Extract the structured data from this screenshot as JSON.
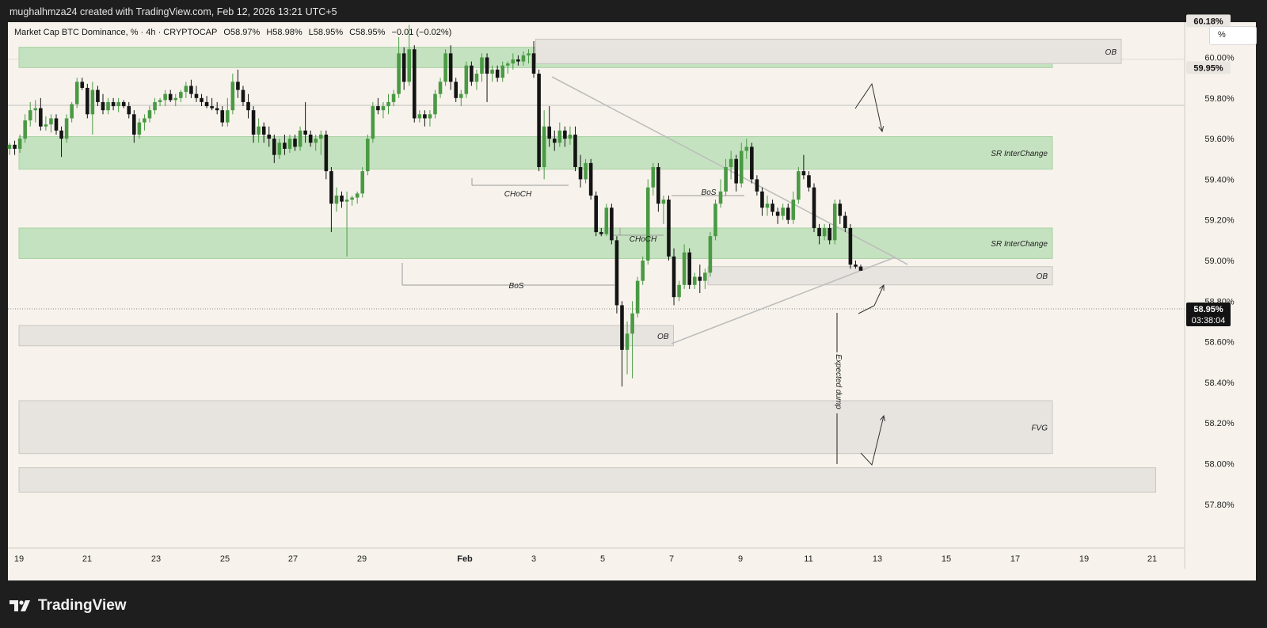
{
  "header": {
    "attribution": "mughalhmza24 created with TradingView.com, Feb 12, 2026 13:21 UTC+5"
  },
  "legend": {
    "symbol": "Market Cap BTC Dominance, % · 4h · CRYPTOCAP",
    "open": "O58.97%",
    "high": "H58.98%",
    "low": "L58.95%",
    "close": "C58.95%",
    "change": "−0.01 (−0.02%)"
  },
  "scale_button": "%",
  "brand": {
    "name": "TradingView"
  },
  "colors": {
    "up": "#4a9a44",
    "down": "#141414",
    "zone_green": "#c5e2c0",
    "zone_gray": "#e7e4e0"
  },
  "chart_data": {
    "type": "candlestick",
    "y_unit": "%",
    "ylim": [
      57.75,
      60.3
    ],
    "y_ticks": [
      "60.00%",
      "59.80%",
      "59.60%",
      "59.40%",
      "59.20%",
      "59.00%",
      "58.80%",
      "58.60%",
      "58.40%",
      "58.20%",
      "58.00%",
      "57.80%"
    ],
    "x_ticks": [
      "19",
      "21",
      "23",
      "25",
      "27",
      "29",
      "Feb",
      "3",
      "5",
      "7",
      "9",
      "11",
      "13",
      "15",
      "17",
      "19",
      "21"
    ],
    "price_labels": [
      {
        "value": 60.18,
        "text": "60.18%",
        "style": "gray"
      },
      {
        "value": 59.95,
        "text": "59.95%",
        "style": "gray"
      },
      {
        "value": 58.95,
        "text": "58.95%",
        "style": "dark",
        "countdown": "03:38:04"
      }
    ],
    "zones": [
      {
        "kind": "green",
        "label": "SR InterChange",
        "from": "Jan 19",
        "to": "Feb 18",
        "low": 59.95,
        "high": 60.05
      },
      {
        "kind": "gray",
        "label": "OB",
        "from": "Feb 3",
        "to": "Feb 20",
        "low": 59.97,
        "high": 60.09
      },
      {
        "kind": "green",
        "label": "SR InterChange",
        "from": "Jan 19",
        "to": "Feb 18",
        "low": 59.45,
        "high": 59.61
      },
      {
        "kind": "green",
        "label": "SR InterChange",
        "from": "Jan 19",
        "to": "Feb 18",
        "low": 59.01,
        "high": 59.16
      },
      {
        "kind": "gray",
        "label": "OB",
        "from": "Feb 8",
        "to": "Feb 18",
        "low": 58.88,
        "high": 58.97
      },
      {
        "kind": "gray",
        "label": "OB",
        "from": "Jan 19",
        "to": "Feb 7",
        "low": 58.58,
        "high": 58.68
      },
      {
        "kind": "gray",
        "label": "FVG",
        "from": "Jan 19",
        "to": "Feb 18",
        "low": 58.05,
        "high": 58.31
      },
      {
        "kind": "gray",
        "label": "",
        "from": "Jan 19",
        "to": "Feb 21",
        "low": 57.86,
        "high": 57.98
      }
    ],
    "annotations": [
      "CHoCH",
      "CHoCH",
      "BoS",
      "BoS",
      "Expected dump"
    ],
    "candles": [
      {
        "o": 59.55,
        "h": 59.58,
        "l": 59.52,
        "c": 59.57
      },
      {
        "o": 59.57,
        "h": 59.59,
        "l": 59.52,
        "c": 59.55
      },
      {
        "o": 59.55,
        "h": 59.62,
        "l": 59.53,
        "c": 59.6
      },
      {
        "o": 59.6,
        "h": 59.72,
        "l": 59.58,
        "c": 59.69
      },
      {
        "o": 59.69,
        "h": 59.78,
        "l": 59.66,
        "c": 59.74
      },
      {
        "o": 59.74,
        "h": 59.79,
        "l": 59.68,
        "c": 59.75
      },
      {
        "o": 59.75,
        "h": 59.8,
        "l": 59.64,
        "c": 59.66
      },
      {
        "o": 59.66,
        "h": 59.71,
        "l": 59.64,
        "c": 59.67
      },
      {
        "o": 59.67,
        "h": 59.72,
        "l": 59.63,
        "c": 59.7
      },
      {
        "o": 59.7,
        "h": 59.72,
        "l": 59.62,
        "c": 59.64
      },
      {
        "o": 59.64,
        "h": 59.66,
        "l": 59.51,
        "c": 59.6
      },
      {
        "o": 59.6,
        "h": 59.72,
        "l": 59.58,
        "c": 59.7
      },
      {
        "o": 59.7,
        "h": 59.78,
        "l": 59.68,
        "c": 59.77
      },
      {
        "o": 59.77,
        "h": 59.9,
        "l": 59.75,
        "c": 59.88
      },
      {
        "o": 59.88,
        "h": 59.9,
        "l": 59.84,
        "c": 59.85
      },
      {
        "o": 59.85,
        "h": 59.87,
        "l": 59.7,
        "c": 59.72
      },
      {
        "o": 59.72,
        "h": 59.88,
        "l": 59.62,
        "c": 59.84
      },
      {
        "o": 59.84,
        "h": 59.86,
        "l": 59.76,
        "c": 59.78
      },
      {
        "o": 59.78,
        "h": 59.82,
        "l": 59.72,
        "c": 59.74
      },
      {
        "o": 59.74,
        "h": 59.8,
        "l": 59.72,
        "c": 59.78
      },
      {
        "o": 59.78,
        "h": 59.8,
        "l": 59.74,
        "c": 59.76
      },
      {
        "o": 59.76,
        "h": 59.8,
        "l": 59.73,
        "c": 59.78
      },
      {
        "o": 59.78,
        "h": 59.79,
        "l": 59.75,
        "c": 59.76
      },
      {
        "o": 59.76,
        "h": 59.78,
        "l": 59.7,
        "c": 59.72
      },
      {
        "o": 59.72,
        "h": 59.74,
        "l": 59.58,
        "c": 59.62
      },
      {
        "o": 59.62,
        "h": 59.7,
        "l": 59.6,
        "c": 59.68
      },
      {
        "o": 59.68,
        "h": 59.72,
        "l": 59.64,
        "c": 59.7
      },
      {
        "o": 59.7,
        "h": 59.76,
        "l": 59.68,
        "c": 59.74
      },
      {
        "o": 59.74,
        "h": 59.8,
        "l": 59.72,
        "c": 59.78
      },
      {
        "o": 59.78,
        "h": 59.8,
        "l": 59.76,
        "c": 59.79
      },
      {
        "o": 59.79,
        "h": 59.84,
        "l": 59.76,
        "c": 59.82
      },
      {
        "o": 59.82,
        "h": 59.84,
        "l": 59.78,
        "c": 59.79
      },
      {
        "o": 59.79,
        "h": 59.82,
        "l": 59.76,
        "c": 59.8
      },
      {
        "o": 59.8,
        "h": 59.84,
        "l": 59.78,
        "c": 59.83
      },
      {
        "o": 59.83,
        "h": 59.88,
        "l": 59.8,
        "c": 59.86
      },
      {
        "o": 59.86,
        "h": 59.89,
        "l": 59.8,
        "c": 59.82
      },
      {
        "o": 59.82,
        "h": 59.86,
        "l": 59.78,
        "c": 59.8
      },
      {
        "o": 59.8,
        "h": 59.82,
        "l": 59.76,
        "c": 59.78
      },
      {
        "o": 59.78,
        "h": 59.81,
        "l": 59.75,
        "c": 59.76
      },
      {
        "o": 59.76,
        "h": 59.8,
        "l": 59.74,
        "c": 59.75
      },
      {
        "o": 59.75,
        "h": 59.78,
        "l": 59.72,
        "c": 59.74
      },
      {
        "o": 59.74,
        "h": 59.76,
        "l": 59.66,
        "c": 59.68
      },
      {
        "o": 59.68,
        "h": 59.8,
        "l": 59.66,
        "c": 59.74
      },
      {
        "o": 59.74,
        "h": 59.92,
        "l": 59.72,
        "c": 59.88
      },
      {
        "o": 59.88,
        "h": 59.94,
        "l": 59.8,
        "c": 59.84
      },
      {
        "o": 59.84,
        "h": 59.86,
        "l": 59.76,
        "c": 59.78
      },
      {
        "o": 59.78,
        "h": 59.82,
        "l": 59.7,
        "c": 59.74
      },
      {
        "o": 59.74,
        "h": 59.76,
        "l": 59.58,
        "c": 59.62
      },
      {
        "o": 59.62,
        "h": 59.7,
        "l": 59.58,
        "c": 59.66
      },
      {
        "o": 59.66,
        "h": 59.68,
        "l": 59.58,
        "c": 59.62
      },
      {
        "o": 59.62,
        "h": 59.66,
        "l": 59.56,
        "c": 59.6
      },
      {
        "o": 59.6,
        "h": 59.62,
        "l": 59.48,
        "c": 59.52
      },
      {
        "o": 59.52,
        "h": 59.6,
        "l": 59.5,
        "c": 59.58
      },
      {
        "o": 59.58,
        "h": 59.62,
        "l": 59.52,
        "c": 59.55
      },
      {
        "o": 59.55,
        "h": 59.62,
        "l": 59.53,
        "c": 59.6
      },
      {
        "o": 59.6,
        "h": 59.62,
        "l": 59.54,
        "c": 59.56
      },
      {
        "o": 59.56,
        "h": 59.66,
        "l": 59.54,
        "c": 59.64
      },
      {
        "o": 59.64,
        "h": 59.78,
        "l": 59.58,
        "c": 59.62
      },
      {
        "o": 59.62,
        "h": 59.64,
        "l": 59.56,
        "c": 59.58
      },
      {
        "o": 59.58,
        "h": 59.62,
        "l": 59.54,
        "c": 59.6
      },
      {
        "o": 59.6,
        "h": 59.64,
        "l": 59.52,
        "c": 59.62
      },
      {
        "o": 59.62,
        "h": 59.64,
        "l": 59.4,
        "c": 59.44
      },
      {
        "o": 59.44,
        "h": 59.46,
        "l": 59.14,
        "c": 59.28
      },
      {
        "o": 59.28,
        "h": 59.36,
        "l": 59.24,
        "c": 59.32
      },
      {
        "o": 59.32,
        "h": 59.34,
        "l": 59.26,
        "c": 59.29
      },
      {
        "o": 59.29,
        "h": 59.34,
        "l": 59.02,
        "c": 59.3
      },
      {
        "o": 59.3,
        "h": 59.32,
        "l": 59.27,
        "c": 59.31
      },
      {
        "o": 59.31,
        "h": 59.34,
        "l": 59.28,
        "c": 59.33
      },
      {
        "o": 59.33,
        "h": 59.46,
        "l": 59.31,
        "c": 59.44
      },
      {
        "o": 59.44,
        "h": 59.62,
        "l": 59.42,
        "c": 59.6
      },
      {
        "o": 59.6,
        "h": 59.78,
        "l": 59.58,
        "c": 59.76
      },
      {
        "o": 59.76,
        "h": 59.8,
        "l": 59.72,
        "c": 59.74
      },
      {
        "o": 59.74,
        "h": 59.78,
        "l": 59.7,
        "c": 59.76
      },
      {
        "o": 59.76,
        "h": 59.82,
        "l": 59.72,
        "c": 59.78
      },
      {
        "o": 59.78,
        "h": 59.84,
        "l": 59.76,
        "c": 59.82
      },
      {
        "o": 59.82,
        "h": 60.1,
        "l": 59.8,
        "c": 60.02
      },
      {
        "o": 60.02,
        "h": 60.05,
        "l": 59.84,
        "c": 59.88
      },
      {
        "o": 59.88,
        "h": 60.16,
        "l": 59.86,
        "c": 60.04
      },
      {
        "o": 60.04,
        "h": 60.06,
        "l": 59.68,
        "c": 59.7
      },
      {
        "o": 59.7,
        "h": 59.74,
        "l": 59.68,
        "c": 59.72
      },
      {
        "o": 59.72,
        "h": 59.74,
        "l": 59.66,
        "c": 59.7
      },
      {
        "o": 59.7,
        "h": 59.74,
        "l": 59.66,
        "c": 59.72
      },
      {
        "o": 59.72,
        "h": 59.84,
        "l": 59.7,
        "c": 59.82
      },
      {
        "o": 59.82,
        "h": 59.9,
        "l": 59.8,
        "c": 59.88
      },
      {
        "o": 59.88,
        "h": 60.04,
        "l": 59.86,
        "c": 60.02
      },
      {
        "o": 60.02,
        "h": 60.06,
        "l": 59.84,
        "c": 59.88
      },
      {
        "o": 59.88,
        "h": 59.9,
        "l": 59.78,
        "c": 59.8
      },
      {
        "o": 59.8,
        "h": 59.84,
        "l": 59.76,
        "c": 59.82
      },
      {
        "o": 59.82,
        "h": 59.98,
        "l": 59.8,
        "c": 59.96
      },
      {
        "o": 59.96,
        "h": 59.98,
        "l": 59.86,
        "c": 59.88
      },
      {
        "o": 59.88,
        "h": 59.94,
        "l": 59.84,
        "c": 59.92
      },
      {
        "o": 59.92,
        "h": 60.02,
        "l": 59.88,
        "c": 60.0
      },
      {
        "o": 60.0,
        "h": 60.02,
        "l": 59.78,
        "c": 59.92
      },
      {
        "o": 59.92,
        "h": 59.96,
        "l": 59.88,
        "c": 59.94
      },
      {
        "o": 59.94,
        "h": 59.96,
        "l": 59.88,
        "c": 59.9
      },
      {
        "o": 59.9,
        "h": 59.98,
        "l": 59.88,
        "c": 59.96
      },
      {
        "o": 59.96,
        "h": 59.98,
        "l": 59.92,
        "c": 59.97
      },
      {
        "o": 59.97,
        "h": 60.02,
        "l": 59.94,
        "c": 59.99
      },
      {
        "o": 59.99,
        "h": 60.01,
        "l": 59.96,
        "c": 59.98
      },
      {
        "o": 59.98,
        "h": 60.03,
        "l": 59.96,
        "c": 60.01
      },
      {
        "o": 60.01,
        "h": 60.04,
        "l": 59.97,
        "c": 60.02
      },
      {
        "o": 60.02,
        "h": 60.08,
        "l": 59.9,
        "c": 59.92
      },
      {
        "o": 59.92,
        "h": 59.94,
        "l": 59.44,
        "c": 59.46
      },
      {
        "o": 59.46,
        "h": 59.74,
        "l": 59.4,
        "c": 59.66
      },
      {
        "o": 59.66,
        "h": 59.76,
        "l": 59.56,
        "c": 59.6
      },
      {
        "o": 59.6,
        "h": 59.64,
        "l": 59.54,
        "c": 59.58
      },
      {
        "o": 59.58,
        "h": 59.68,
        "l": 59.56,
        "c": 59.64
      },
      {
        "o": 59.64,
        "h": 59.66,
        "l": 59.56,
        "c": 59.6
      },
      {
        "o": 59.6,
        "h": 59.66,
        "l": 59.57,
        "c": 59.62
      },
      {
        "o": 59.62,
        "h": 59.66,
        "l": 59.44,
        "c": 59.46
      },
      {
        "o": 59.46,
        "h": 59.52,
        "l": 59.36,
        "c": 59.4
      },
      {
        "o": 59.4,
        "h": 59.5,
        "l": 59.38,
        "c": 59.48
      },
      {
        "o": 59.48,
        "h": 59.5,
        "l": 59.3,
        "c": 59.32
      },
      {
        "o": 59.32,
        "h": 59.34,
        "l": 59.12,
        "c": 59.14
      },
      {
        "o": 59.14,
        "h": 59.16,
        "l": 59.12,
        "c": 59.13
      },
      {
        "o": 59.13,
        "h": 59.28,
        "l": 59.12,
        "c": 59.26
      },
      {
        "o": 59.26,
        "h": 59.28,
        "l": 59.08,
        "c": 59.1
      },
      {
        "o": 59.1,
        "h": 59.12,
        "l": 58.74,
        "c": 58.78
      },
      {
        "o": 58.78,
        "h": 58.8,
        "l": 58.38,
        "c": 58.56
      },
      {
        "o": 58.56,
        "h": 58.7,
        "l": 58.44,
        "c": 58.64
      },
      {
        "o": 58.64,
        "h": 58.8,
        "l": 58.42,
        "c": 58.74
      },
      {
        "o": 58.74,
        "h": 58.92,
        "l": 58.72,
        "c": 58.9
      },
      {
        "o": 58.9,
        "h": 59.02,
        "l": 58.88,
        "c": 59.0
      },
      {
        "o": 59.0,
        "h": 59.4,
        "l": 58.98,
        "c": 59.36
      },
      {
        "o": 59.36,
        "h": 59.48,
        "l": 59.32,
        "c": 59.46
      },
      {
        "o": 59.46,
        "h": 59.48,
        "l": 59.24,
        "c": 59.28
      },
      {
        "o": 59.28,
        "h": 59.32,
        "l": 59.18,
        "c": 59.3
      },
      {
        "o": 59.3,
        "h": 59.32,
        "l": 59.0,
        "c": 59.02
      },
      {
        "o": 59.02,
        "h": 59.06,
        "l": 58.78,
        "c": 58.82
      },
      {
        "o": 58.82,
        "h": 58.9,
        "l": 58.8,
        "c": 58.88
      },
      {
        "o": 58.88,
        "h": 59.08,
        "l": 58.86,
        "c": 59.04
      },
      {
        "o": 59.04,
        "h": 59.06,
        "l": 58.86,
        "c": 58.88
      },
      {
        "o": 58.88,
        "h": 58.94,
        "l": 58.86,
        "c": 58.92
      },
      {
        "o": 58.92,
        "h": 58.98,
        "l": 58.84,
        "c": 58.9
      },
      {
        "o": 58.9,
        "h": 58.96,
        "l": 58.86,
        "c": 58.94
      },
      {
        "o": 58.94,
        "h": 59.14,
        "l": 58.92,
        "c": 59.12
      },
      {
        "o": 59.12,
        "h": 59.3,
        "l": 59.1,
        "c": 59.28
      },
      {
        "o": 59.28,
        "h": 59.4,
        "l": 59.26,
        "c": 59.34
      },
      {
        "o": 59.34,
        "h": 59.5,
        "l": 59.32,
        "c": 59.46
      },
      {
        "o": 59.46,
        "h": 59.54,
        "l": 59.4,
        "c": 59.5
      },
      {
        "o": 59.5,
        "h": 59.52,
        "l": 59.34,
        "c": 59.38
      },
      {
        "o": 59.38,
        "h": 59.58,
        "l": 59.36,
        "c": 59.54
      },
      {
        "o": 59.54,
        "h": 59.6,
        "l": 59.5,
        "c": 59.56
      },
      {
        "o": 59.56,
        "h": 59.58,
        "l": 59.38,
        "c": 59.4
      },
      {
        "o": 59.4,
        "h": 59.42,
        "l": 59.32,
        "c": 59.34
      },
      {
        "o": 59.34,
        "h": 59.36,
        "l": 59.22,
        "c": 59.26
      },
      {
        "o": 59.26,
        "h": 59.32,
        "l": 59.22,
        "c": 59.28
      },
      {
        "o": 59.28,
        "h": 59.3,
        "l": 59.22,
        "c": 59.24
      },
      {
        "o": 59.24,
        "h": 59.26,
        "l": 59.18,
        "c": 59.22
      },
      {
        "o": 59.22,
        "h": 59.28,
        "l": 59.2,
        "c": 59.26
      },
      {
        "o": 59.26,
        "h": 59.28,
        "l": 59.18,
        "c": 59.2
      },
      {
        "o": 59.2,
        "h": 59.34,
        "l": 59.18,
        "c": 59.3
      },
      {
        "o": 59.3,
        "h": 59.46,
        "l": 59.28,
        "c": 59.44
      },
      {
        "o": 59.44,
        "h": 59.52,
        "l": 59.4,
        "c": 59.42
      },
      {
        "o": 59.42,
        "h": 59.44,
        "l": 59.34,
        "c": 59.36
      },
      {
        "o": 59.36,
        "h": 59.38,
        "l": 59.14,
        "c": 59.16
      },
      {
        "o": 59.16,
        "h": 59.18,
        "l": 59.08,
        "c": 59.12
      },
      {
        "o": 59.12,
        "h": 59.18,
        "l": 59.1,
        "c": 59.16
      },
      {
        "o": 59.16,
        "h": 59.18,
        "l": 59.08,
        "c": 59.1
      },
      {
        "o": 59.1,
        "h": 59.3,
        "l": 59.08,
        "c": 59.28
      },
      {
        "o": 59.28,
        "h": 59.3,
        "l": 59.18,
        "c": 59.22
      },
      {
        "o": 59.22,
        "h": 59.24,
        "l": 59.14,
        "c": 59.16
      },
      {
        "o": 59.16,
        "h": 59.18,
        "l": 58.96,
        "c": 58.98
      },
      {
        "o": 58.98,
        "h": 59.0,
        "l": 58.96,
        "c": 58.97
      },
      {
        "o": 58.97,
        "h": 58.98,
        "l": 58.95,
        "c": 58.95
      }
    ]
  }
}
